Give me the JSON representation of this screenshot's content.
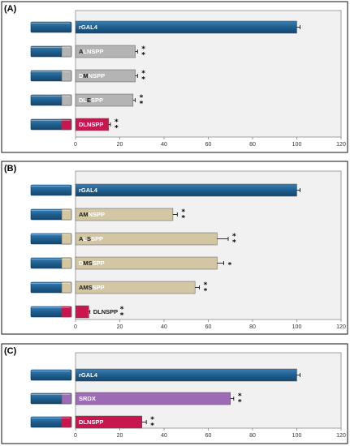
{
  "colors": {
    "navy": "#1f5f8f",
    "grey": "#b4b4b4",
    "tan": "#d3c7a3",
    "red": "#c8174f",
    "purple": "#9b6bb5",
    "plot_bg": "#f1f1f1",
    "dark": "#1a1a1a"
  },
  "chart_data": [
    {
      "type": "bar",
      "orientation": "horizontal",
      "panel": "(A)",
      "xlim": [
        0,
        120
      ],
      "xticks": [
        0,
        20,
        40,
        60,
        80,
        100,
        120
      ],
      "bars": [
        {
          "label": "rGAL4",
          "value": 100,
          "error": 1.5,
          "color": "#1f5f8f",
          "stars": "",
          "construct_tail": "#1f5f8f",
          "label_parts": [
            {
              "t": "rGAL4",
              "c": "#ffffff"
            }
          ]
        },
        {
          "label": "ALNSPP",
          "value": 27,
          "error": 1,
          "color": "#b4b4b4",
          "stars": "**",
          "construct_tail": "#b4b4b4",
          "label_parts": [
            {
              "t": "A",
              "c": "#1a1a1a"
            },
            {
              "t": "LNSPP",
              "c": "#ffffff"
            }
          ]
        },
        {
          "label": "DMNSPP",
          "value": 27,
          "error": 1,
          "color": "#b4b4b4",
          "stars": "**",
          "construct_tail": "#b4b4b4",
          "label_parts": [
            {
              "t": "D",
              "c": "#ffffff"
            },
            {
              "t": "M",
              "c": "#1a1a1a"
            },
            {
              "t": "NSPP",
              "c": "#ffffff"
            }
          ]
        },
        {
          "label": "DLESPP",
          "value": 26,
          "error": 1,
          "color": "#b4b4b4",
          "stars": "**",
          "construct_tail": "#b4b4b4",
          "label_parts": [
            {
              "t": "DL",
              "c": "#ffffff"
            },
            {
              "t": "E",
              "c": "#1a1a1a"
            },
            {
              "t": "SPP",
              "c": "#ffffff"
            }
          ]
        },
        {
          "label": "DLNSPP",
          "value": 15,
          "error": 0.8,
          "color": "#c8174f",
          "stars": "**",
          "construct_tail": "#c8174f",
          "label_parts": [
            {
              "t": "DLNSPP",
              "c": "#ffffff"
            }
          ]
        }
      ]
    },
    {
      "type": "bar",
      "orientation": "horizontal",
      "panel": "(B)",
      "xlim": [
        0,
        120
      ],
      "xticks": [
        0,
        20,
        40,
        60,
        80,
        100,
        120
      ],
      "bars": [
        {
          "label": "rGAL4",
          "value": 100,
          "error": 1.5,
          "color": "#1f5f8f",
          "stars": "",
          "construct_tail": "#1f5f8f",
          "label_parts": [
            {
              "t": "rGAL4",
              "c": "#ffffff"
            }
          ]
        },
        {
          "label": "AMNSPP",
          "value": 44,
          "error": 2,
          "color": "#d3c7a3",
          "stars": "**",
          "construct_tail": "#d3c7a3",
          "label_parts": [
            {
              "t": "AM",
              "c": "#1a1a1a"
            },
            {
              "t": "NSPP",
              "c": "#ffffff"
            }
          ]
        },
        {
          "label": "ALSSPP",
          "value": 64,
          "error": 5,
          "color": "#d3c7a3",
          "stars": "**",
          "construct_tail": "#d3c7a3",
          "label_parts": [
            {
              "t": "A",
              "c": "#1a1a1a"
            },
            {
              "t": "L",
              "c": "#ffffff"
            },
            {
              "t": "S",
              "c": "#1a1a1a"
            },
            {
              "t": "SPP",
              "c": "#ffffff"
            }
          ]
        },
        {
          "label": "DMSSPP",
          "value": 64,
          "error": 3,
          "color": "#d3c7a3",
          "stars": "*",
          "construct_tail": "#d3c7a3",
          "label_parts": [
            {
              "t": "D",
              "c": "#ffffff"
            },
            {
              "t": "MS",
              "c": "#1a1a1a"
            },
            {
              "t": "SPP",
              "c": "#ffffff"
            }
          ]
        },
        {
          "label": "AMSSPP",
          "value": 54,
          "error": 2,
          "color": "#d3c7a3",
          "stars": "**",
          "construct_tail": "#d3c7a3",
          "label_parts": [
            {
              "t": "AMS",
              "c": "#1a1a1a"
            },
            {
              "t": "SPP",
              "c": "#ffffff"
            }
          ]
        },
        {
          "label": "DLNSPP",
          "value": 6,
          "error": 0.5,
          "color": "#c8174f",
          "stars": "**",
          "construct_tail": "#c8174f",
          "label_parts": [
            {
              "t": "DLNSPP",
              "c": "#1a1a1a"
            }
          ],
          "label_outside": true
        }
      ]
    },
    {
      "type": "bar",
      "orientation": "horizontal",
      "panel": "(C)",
      "xlim": [
        0,
        120
      ],
      "xticks": [
        0,
        20,
        40,
        60,
        80,
        100,
        120
      ],
      "bars": [
        {
          "label": "rGAL4",
          "value": 100,
          "error": 1.5,
          "color": "#1f5f8f",
          "stars": "",
          "construct_tail": "#1f5f8f",
          "label_parts": [
            {
              "t": "rGAL4",
              "c": "#ffffff"
            }
          ]
        },
        {
          "label": "SRDX",
          "value": 70,
          "error": 1.5,
          "color": "#9b6bb5",
          "stars": "**",
          "construct_tail": "#9b6bb5",
          "label_parts": [
            {
              "t": "SRDX",
              "c": "#ffffff"
            }
          ]
        },
        {
          "label": "DLNSPP",
          "value": 30,
          "error": 2,
          "color": "#c8174f",
          "stars": "**",
          "construct_tail": "#c8174f",
          "label_parts": [
            {
              "t": "DLNSPP",
              "c": "#ffffff"
            }
          ]
        }
      ]
    }
  ]
}
